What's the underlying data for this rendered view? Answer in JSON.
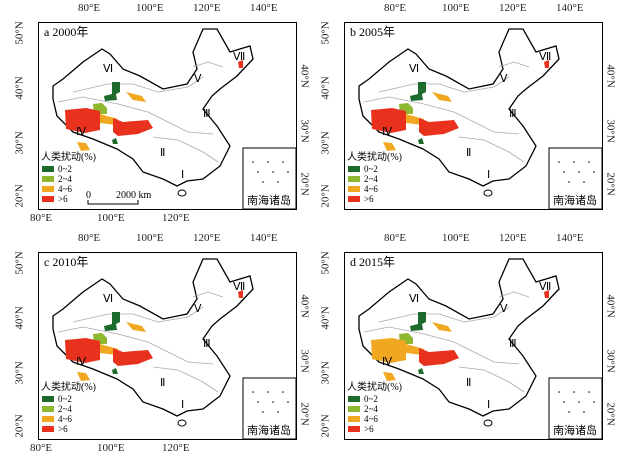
{
  "colors": {
    "0-2": "#1e6b2e",
    "2-4": "#8db830",
    "4-6": "#f0a820",
    ">6": "#e8321e",
    "outline": "#000",
    "boundary": "#aaa"
  },
  "panels": [
    {
      "title": "a 2000年",
      "show_left_lat": true,
      "show_bottom_lon": true,
      "show_scale": true
    },
    {
      "title": "b 2005年",
      "show_left_lat": true,
      "show_bottom_lon": false,
      "show_scale": false
    },
    {
      "title": "c 2010年",
      "show_left_lat": true,
      "show_bottom_lon": true,
      "show_scale": false
    },
    {
      "title": "d 2015年",
      "show_left_lat": true,
      "show_bottom_lon": false,
      "show_scale": false
    }
  ],
  "top_lon_labels": [
    "80°E",
    "100°E",
    "120°E",
    "140°E"
  ],
  "bottom_lon_labels": [
    "80°E",
    "100°E",
    "120°E"
  ],
  "left_lat_labels": [
    "50°N",
    "40°N",
    "30°N",
    "20°N"
  ],
  "right_lat_labels": [
    "40°N",
    "30°N",
    "20°N"
  ],
  "region_labels": [
    "Ⅰ",
    "Ⅱ",
    "Ⅲ",
    "Ⅳ",
    "Ⅴ",
    "Ⅵ",
    "Ⅶ"
  ],
  "legend": {
    "title": "人类扰动(%)",
    "items": [
      {
        "label": "0~2",
        "class": "0-2"
      },
      {
        "label": "2~4",
        "class": "2-4"
      },
      {
        "label": "4~6",
        "class": "4-6"
      },
      {
        "label": ">6",
        "class": ">6"
      }
    ]
  },
  "scale_bar": {
    "start": "0",
    "end": "2000 km"
  },
  "inset_label": "南海诸岛"
}
